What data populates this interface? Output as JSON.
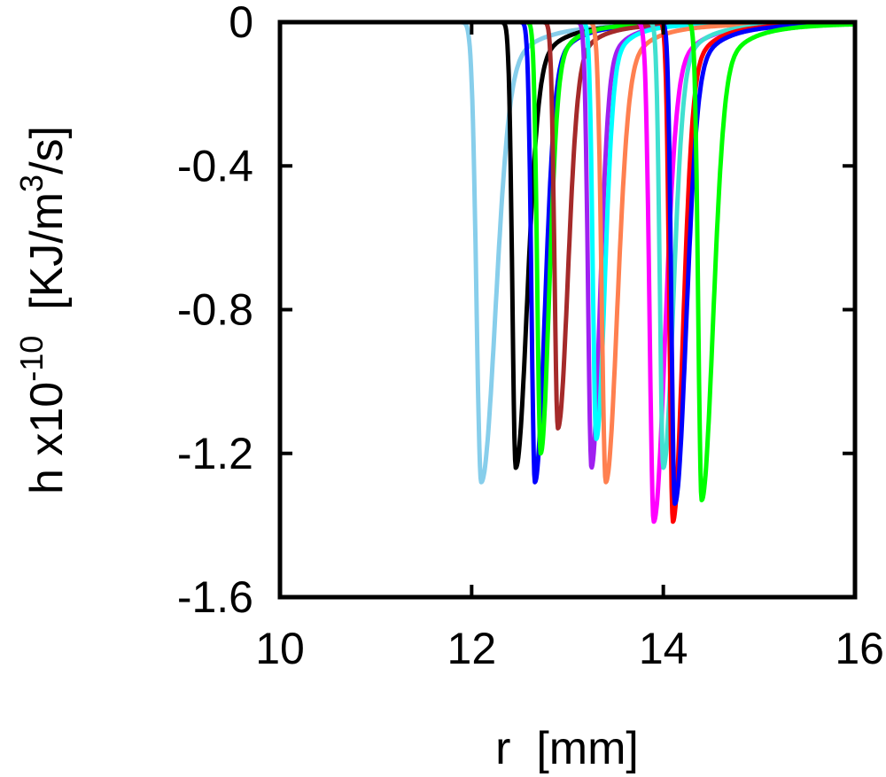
{
  "chart_data": {
    "type": "line",
    "title": "",
    "xlabel": "r  [mm]",
    "ylabel": {
      "prefix": "h x10",
      "exponent": "-10",
      "unit_start": "  [KJ/m",
      "unit_exponent": "3",
      "unit_end": "/s]"
    },
    "xlim": [
      10,
      16
    ],
    "ylim": [
      -1.6,
      0
    ],
    "xticks": [
      "10",
      "12",
      "14",
      "16"
    ],
    "yticks": [
      "0",
      "-0.4",
      "-0.8",
      "-1.2",
      "-1.6"
    ],
    "grid": false,
    "legend": "none",
    "series": [
      {
        "color": "#87ceeb",
        "center": 12.1,
        "min": -1.28,
        "width_left": 0.07,
        "width_right": 0.5
      },
      {
        "color": "#000000",
        "center": 12.46,
        "min": -1.24,
        "width_left": 0.05,
        "width_right": 0.4
      },
      {
        "color": "#0000ff",
        "center": 12.66,
        "min": -1.28,
        "width_left": 0.05,
        "width_right": 0.35
      },
      {
        "color": "#00ff00",
        "center": 12.72,
        "min": -1.2,
        "width_left": 0.05,
        "width_right": 0.3
      },
      {
        "color": "#a52a2a",
        "center": 12.9,
        "min": -1.13,
        "width_left": 0.05,
        "width_right": 0.35
      },
      {
        "color": "#a020f0",
        "center": 13.25,
        "min": -1.24,
        "width_left": 0.05,
        "width_right": 0.3
      },
      {
        "color": "#00ffff",
        "center": 13.3,
        "min": -1.16,
        "width_left": 0.05,
        "width_right": 0.3
      },
      {
        "color": "#ff8050",
        "center": 13.4,
        "min": -1.28,
        "width_left": 0.06,
        "width_right": 0.4
      },
      {
        "color": "#ff00ff",
        "center": 13.9,
        "min": -1.39,
        "width_left": 0.06,
        "width_right": 0.4
      },
      {
        "color": "#40e0d0",
        "center": 14.0,
        "min": -1.24,
        "width_left": 0.05,
        "width_right": 0.35
      },
      {
        "color": "#ff0000",
        "center": 14.1,
        "min": -1.39,
        "width_left": 0.05,
        "width_right": 0.35
      },
      {
        "color": "#0000ff",
        "center": 14.12,
        "min": -1.34,
        "width_left": 0.05,
        "width_right": 0.4
      },
      {
        "color": "#00ff00",
        "center": 14.4,
        "min": -1.33,
        "width_left": 0.05,
        "width_right": 0.4
      }
    ]
  }
}
